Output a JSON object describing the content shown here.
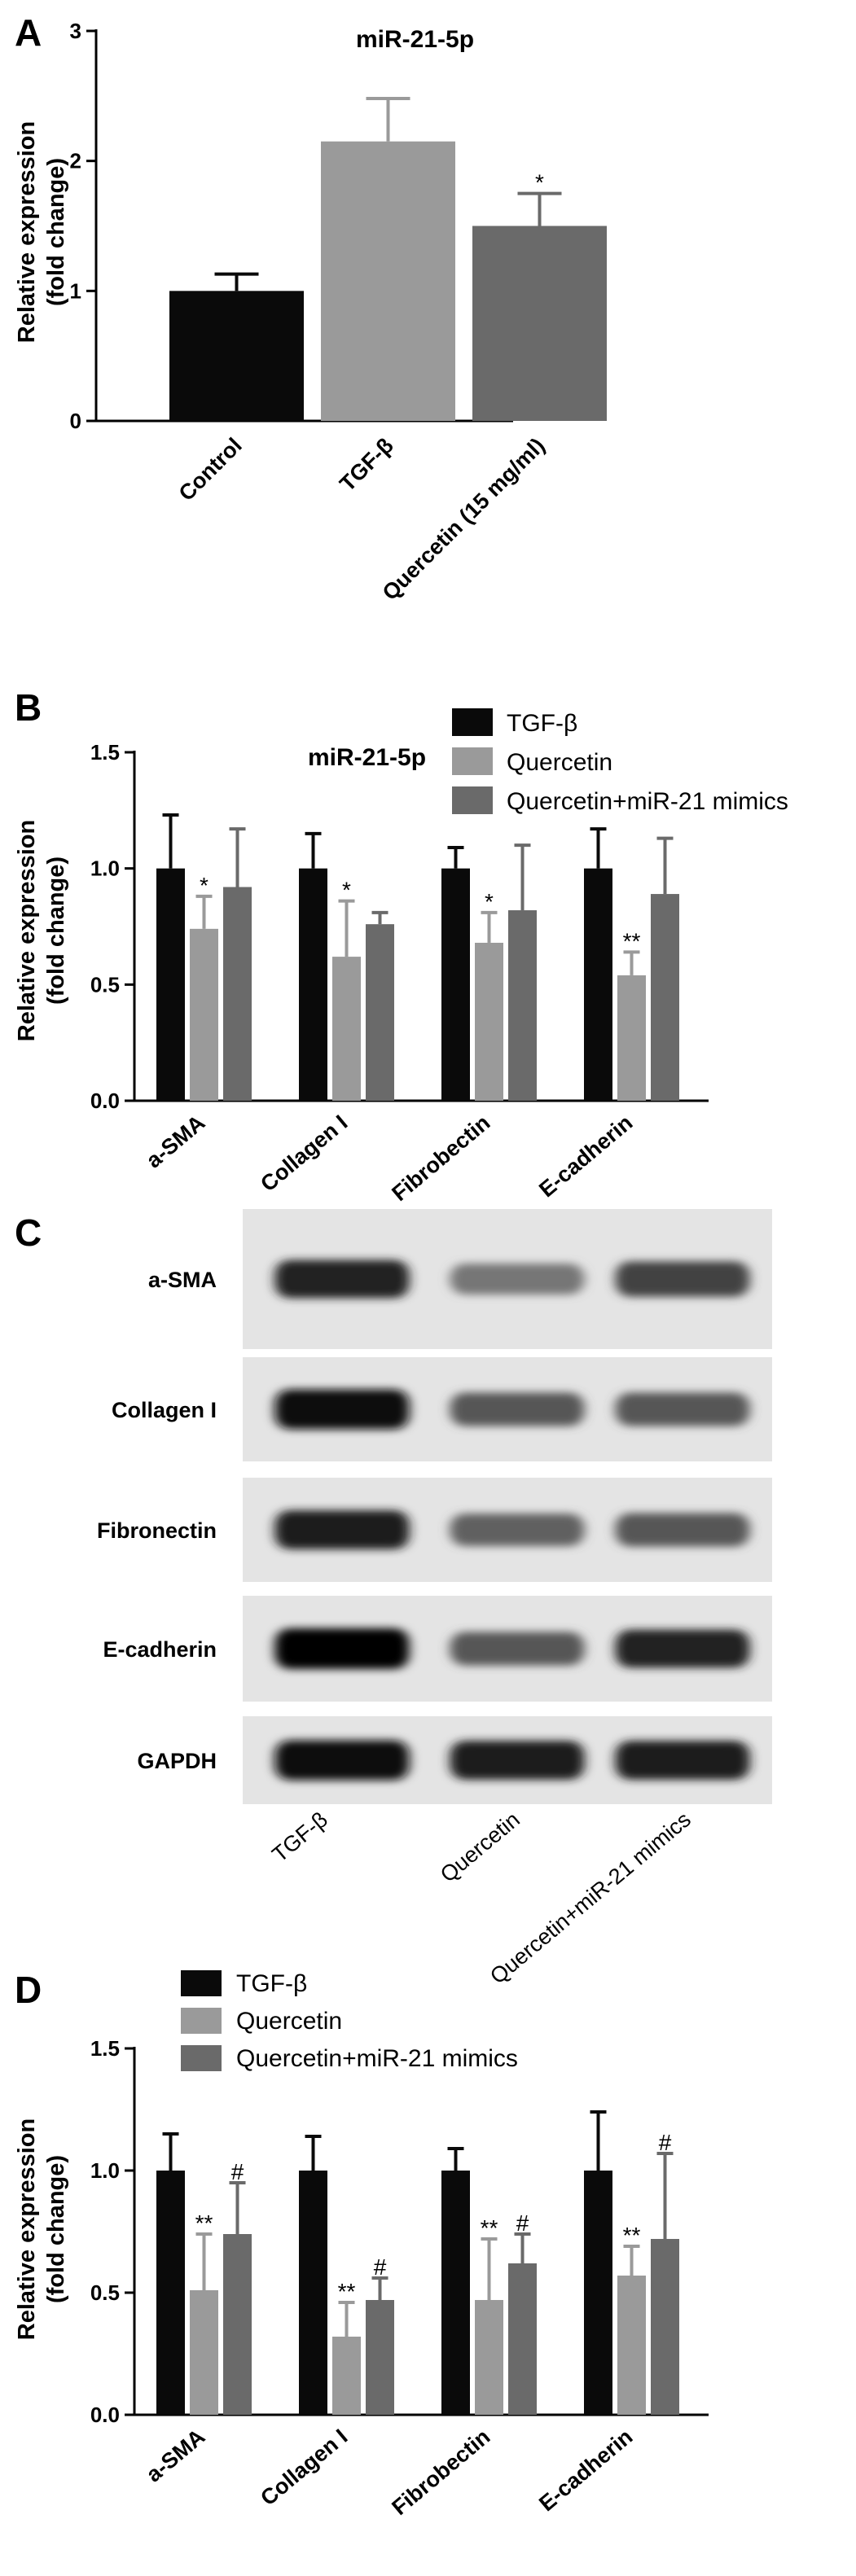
{
  "panels": {
    "a": {
      "letter": "A"
    },
    "b": {
      "letter": "B"
    },
    "c": {
      "letter": "C"
    },
    "d": {
      "letter": "D"
    }
  },
  "colors": {
    "black": "#0a0a0a",
    "light_gray": "#9a9a9a",
    "dark_gray": "#6a6a6a"
  },
  "chart_data": [
    {
      "id": "A",
      "type": "bar",
      "title": "miR-21-5p",
      "ylabel": [
        "Relative expression",
        "(fold change)"
      ],
      "xlabel": "",
      "ylim": [
        0,
        3
      ],
      "yticks": [
        0,
        1,
        2,
        3
      ],
      "categories": [
        "Control",
        "TGF-β",
        "Quercetin (15 mg/ml)"
      ],
      "series": [
        {
          "colors": [
            "#0a0a0a",
            "#9a9a9a",
            "#6a6a6a"
          ],
          "values": [
            1.0,
            2.15,
            1.5
          ],
          "errors": [
            0.13,
            0.33,
            0.25
          ],
          "sig": [
            "",
            "",
            "*"
          ]
        }
      ],
      "grid": false
    },
    {
      "id": "B",
      "type": "bar",
      "title": "miR-21-5p",
      "ylabel": [
        "Relative expression",
        "(fold change)"
      ],
      "xlabel": "",
      "ylim": [
        0,
        1.5
      ],
      "yticks": [
        0.0,
        0.5,
        1.0,
        1.5
      ],
      "categories": [
        "a-SMA",
        "Collagen I",
        "Fibrobectin",
        "E-cadherin"
      ],
      "legend_position": "top-right",
      "series": [
        {
          "name": "TGF-β",
          "color": "#0a0a0a",
          "values": [
            1.0,
            1.0,
            1.0,
            1.0
          ],
          "errors": [
            0.23,
            0.15,
            0.09,
            0.17
          ],
          "sig": [
            "",
            "",
            "",
            ""
          ]
        },
        {
          "name": "Quercetin",
          "color": "#9a9a9a",
          "values": [
            0.74,
            0.62,
            0.68,
            0.54
          ],
          "errors": [
            0.14,
            0.24,
            0.13,
            0.1
          ],
          "sig": [
            "*",
            "*",
            "*",
            "**"
          ]
        },
        {
          "name": "Quercetin+miR-21 mimics",
          "color": "#6a6a6a",
          "values": [
            0.92,
            0.76,
            0.82,
            0.89
          ],
          "errors": [
            0.25,
            0.05,
            0.28,
            0.24
          ],
          "sig": [
            "",
            "",
            "",
            ""
          ]
        }
      ],
      "grid": false
    },
    {
      "id": "D",
      "type": "bar",
      "title": "",
      "ylabel": [
        "Relative expression",
        "(fold change)"
      ],
      "xlabel": "",
      "ylim": [
        0,
        1.5
      ],
      "yticks": [
        0.0,
        0.5,
        1.0,
        1.5
      ],
      "categories": [
        "a-SMA",
        "Collagen I",
        "Fibrobectin",
        "E-cadherin"
      ],
      "legend_position": "top-left",
      "series": [
        {
          "name": "TGF-β",
          "color": "#0a0a0a",
          "values": [
            1.0,
            1.0,
            1.0,
            1.0
          ],
          "errors": [
            0.15,
            0.14,
            0.09,
            0.24
          ],
          "sig": [
            "",
            "",
            "",
            ""
          ]
        },
        {
          "name": "Quercetin",
          "color": "#9a9a9a",
          "values": [
            0.51,
            0.32,
            0.47,
            0.57
          ],
          "errors": [
            0.23,
            0.14,
            0.25,
            0.12
          ],
          "sig": [
            "**",
            "**",
            "**",
            "**"
          ]
        },
        {
          "name": "Quercetin+miR-21 mimics",
          "color": "#6a6a6a",
          "values": [
            0.74,
            0.47,
            0.62,
            0.72
          ],
          "errors": [
            0.21,
            0.09,
            0.12,
            0.35
          ],
          "sig": [
            "#",
            "#",
            "#",
            "#"
          ]
        }
      ],
      "grid": false
    }
  ],
  "western_blot": {
    "rows": [
      {
        "label": "a-SMA",
        "intensities": [
          0.85,
          0.45,
          0.7
        ]
      },
      {
        "label": "Collagen I",
        "intensities": [
          0.95,
          0.6,
          0.6
        ]
      },
      {
        "label": "Fibronectin",
        "intensities": [
          0.9,
          0.55,
          0.6
        ]
      },
      {
        "label": "E-cadherin",
        "intensities": [
          1.0,
          0.6,
          0.85
        ]
      },
      {
        "label": "GAPDH",
        "intensities": [
          0.95,
          0.9,
          0.9
        ]
      }
    ],
    "lanes": [
      "TGF-β",
      "Quercetin",
      "Quercetin+miR-21 mimics"
    ]
  }
}
